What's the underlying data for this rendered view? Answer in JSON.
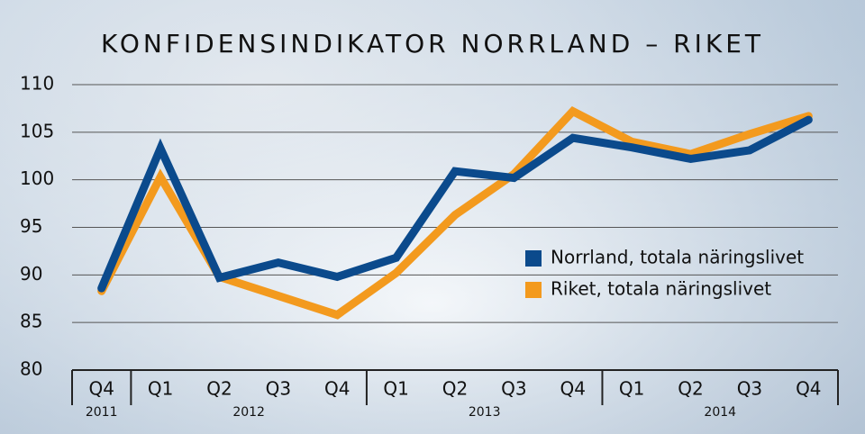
{
  "chart_data": {
    "type": "line",
    "title": "KONFIDENSINDIKATOR NORRLAND – RIKET",
    "groups": [
      {
        "label": "2011",
        "categories": [
          "Q4"
        ]
      },
      {
        "label": "2012",
        "categories": [
          "Q1",
          "Q2",
          "Q3",
          "Q4"
        ]
      },
      {
        "label": "2013",
        "categories": [
          "Q1",
          "Q2",
          "Q3",
          "Q4"
        ]
      },
      {
        "label": "2014",
        "categories": [
          "Q1",
          "Q2",
          "Q3",
          "Q4"
        ]
      }
    ],
    "series": [
      {
        "name": "Norrland, totala näringslivet",
        "color": "#0b4a8c",
        "values": [
          88.6,
          103.3,
          89.7,
          91.3,
          89.8,
          91.8,
          100.9,
          100.2,
          104.4,
          103.4,
          102.2,
          103.1,
          106.3
        ]
      },
      {
        "name": "Riket, totala näringslivet",
        "color": "#f39a1e",
        "values": [
          88.3,
          100.3,
          89.8,
          87.8,
          85.8,
          90.2,
          96.3,
          100.6,
          107.2,
          104.0,
          102.7,
          104.8,
          106.7
        ]
      }
    ],
    "ylim": [
      80,
      110
    ],
    "yticks": [
      80,
      85,
      90,
      95,
      100,
      105,
      110
    ],
    "grid": true,
    "legend": "right"
  }
}
